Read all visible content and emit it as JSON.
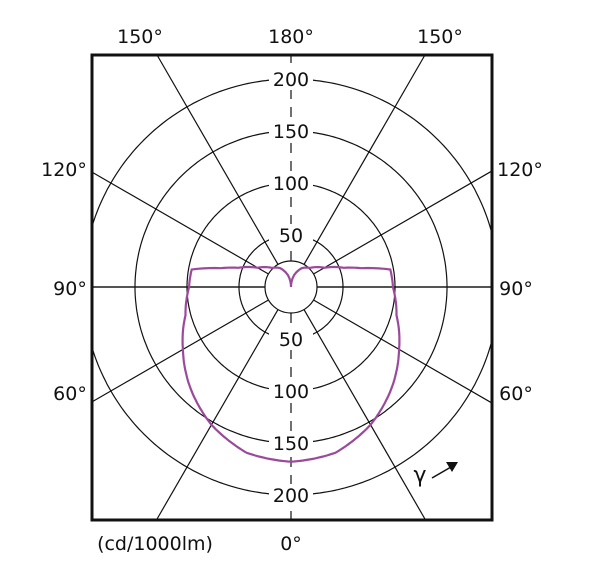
{
  "chart_data": {
    "type": "polar",
    "unit_label": "(cd/1000lm)",
    "radial_ticks": [
      50,
      100,
      150,
      200
    ],
    "radial_range": [
      0,
      200
    ],
    "angle_labels_top": [
      "150°",
      "180°",
      "150°"
    ],
    "angle_labels_left": [
      "120°",
      "90°",
      "60°"
    ],
    "angle_labels_right": [
      "120°",
      "90°",
      "60°"
    ],
    "angle_label_bottom": "0°",
    "angle_symbol": "γ",
    "grid": true,
    "curve_color": "#9b4a9b",
    "series": [
      {
        "gamma_deg": [
          0,
          15,
          30,
          45,
          60,
          75,
          90,
          100,
          105,
          110,
          120,
          135,
          150,
          165,
          180
        ],
        "intensity": [
          168,
          165,
          153,
          137,
          120,
          105,
          98,
          97,
          70,
          54,
          37,
          26,
          21,
          12,
          0
        ]
      }
    ]
  }
}
